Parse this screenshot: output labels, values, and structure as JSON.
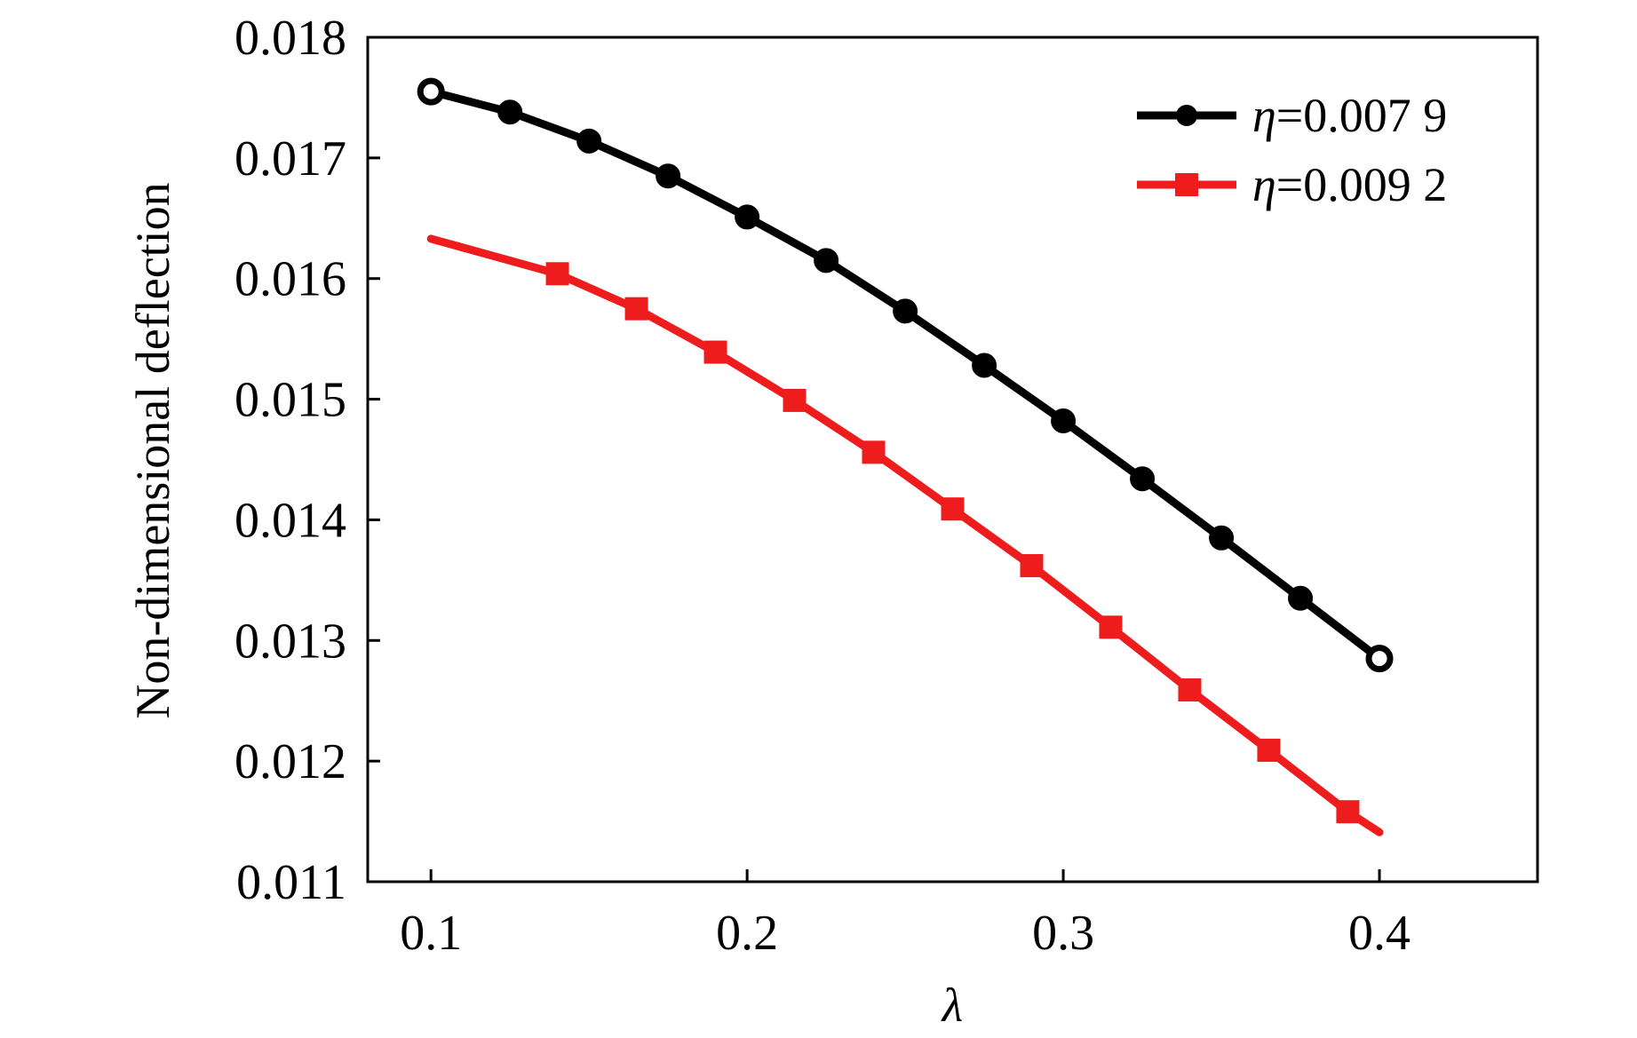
{
  "chart_data": {
    "type": "line",
    "title": "",
    "xlabel": "λ",
    "ylabel": "Non-dimensional deflection",
    "xlim": [
      0.08,
      0.45
    ],
    "ylim": [
      0.011,
      0.018
    ],
    "xticks": [
      0.1,
      0.2,
      0.3,
      0.4
    ],
    "yticks": [
      0.011,
      0.012,
      0.013,
      0.014,
      0.015,
      0.016,
      0.017,
      0.018
    ],
    "xtick_labels": [
      "0.1",
      "0.2",
      "0.3",
      "0.4"
    ],
    "ytick_labels": [
      "0.011",
      "0.012",
      "0.013",
      "0.014",
      "0.015",
      "0.016",
      "0.017",
      "0.018"
    ],
    "grid": false,
    "legend_position": "top-right",
    "series": [
      {
        "name": "η=0.007 9",
        "legend_symbol": "η",
        "legend_value": "=0.007 9",
        "color": "#000000",
        "marker": "circle",
        "x": [
          0.1,
          0.125,
          0.15,
          0.175,
          0.2,
          0.225,
          0.25,
          0.275,
          0.3,
          0.325,
          0.35,
          0.375,
          0.4
        ],
        "y": [
          0.01755,
          0.01738,
          0.01714,
          0.01685,
          0.01651,
          0.01615,
          0.01573,
          0.01528,
          0.01482,
          0.01434,
          0.01385,
          0.01335,
          0.01285
        ]
      },
      {
        "name": "η=0.009 2",
        "legend_symbol": "η",
        "legend_value": "=0.009 2",
        "color": "#ee1c1c",
        "marker": "square",
        "x": [
          0.1,
          0.14,
          0.165,
          0.19,
          0.215,
          0.24,
          0.265,
          0.29,
          0.315,
          0.34,
          0.365,
          0.39,
          0.4
        ],
        "y": [
          0.01633,
          0.01604,
          0.01575,
          0.01539,
          0.01499,
          0.01456,
          0.01409,
          0.01362,
          0.01311,
          0.01259,
          0.01209,
          0.01158,
          0.01141
        ],
        "marker_indices": [
          1,
          2,
          3,
          4,
          5,
          6,
          7,
          8,
          9,
          10,
          11
        ]
      }
    ]
  }
}
